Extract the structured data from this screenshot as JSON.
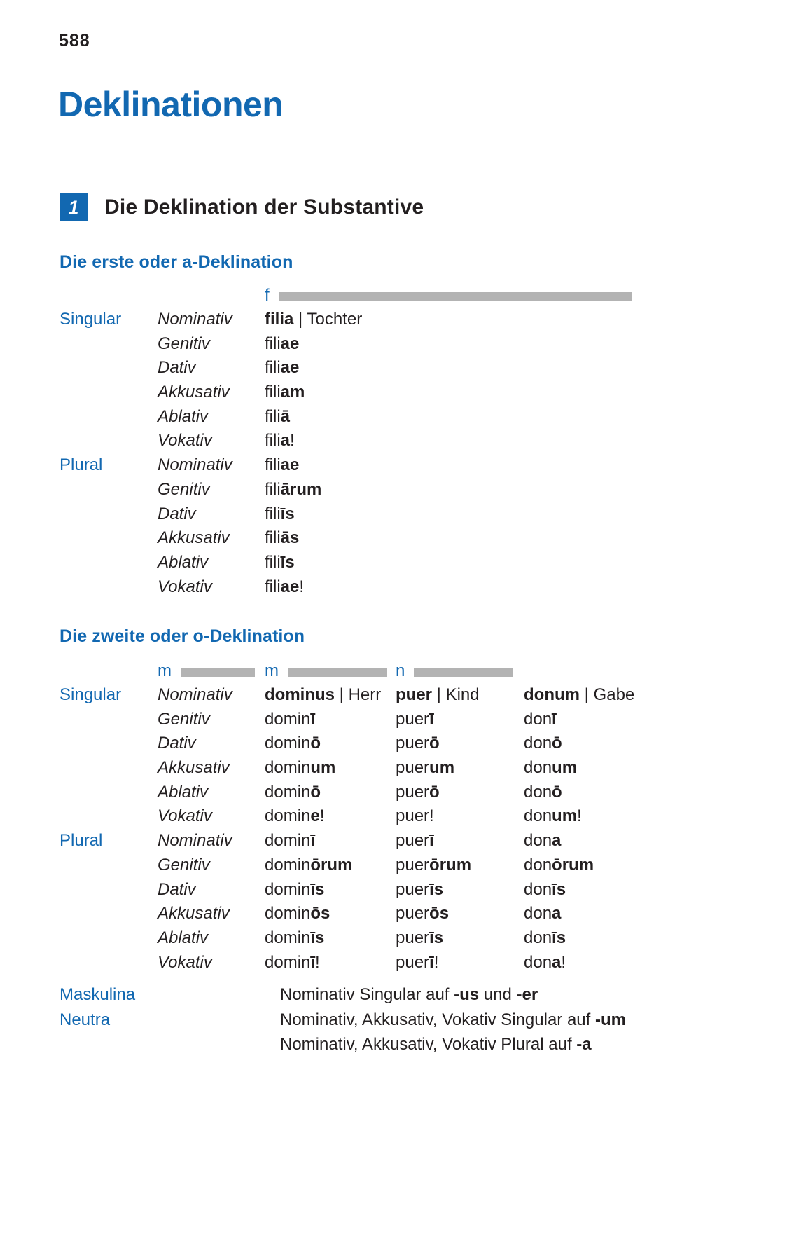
{
  "page": {
    "number": "588"
  },
  "title": "Deklinationen",
  "section": {
    "number": "1",
    "title": "Die Deklination der Substantive"
  },
  "colors": {
    "accent_blue": "#1268b1",
    "gender_bar_gray": "#b3b3b3",
    "text_ink": "#231f20"
  },
  "tables": [
    {
      "heading": "Die erste oder a-Deklination",
      "genders": [
        "f"
      ],
      "rows": [
        {
          "num": "Singular",
          "case": "Nominativ",
          "forms": [
            [
              [
                "filia",
                1
              ],
              [
                " | Tochter",
                0
              ]
            ]
          ]
        },
        {
          "num": "",
          "case": "Genitiv",
          "forms": [
            [
              [
                "fili",
                0
              ],
              [
                "ae",
                1
              ]
            ]
          ]
        },
        {
          "num": "",
          "case": "Dativ",
          "forms": [
            [
              [
                "fili",
                0
              ],
              [
                "ae",
                1
              ]
            ]
          ]
        },
        {
          "num": "",
          "case": "Akkusativ",
          "forms": [
            [
              [
                "fili",
                0
              ],
              [
                "am",
                1
              ]
            ]
          ]
        },
        {
          "num": "",
          "case": "Ablativ",
          "forms": [
            [
              [
                "fili",
                0
              ],
              [
                "ā",
                1
              ]
            ]
          ]
        },
        {
          "num": "",
          "case": "Vokativ",
          "forms": [
            [
              [
                "fili",
                0
              ],
              [
                "a",
                1
              ],
              [
                "!",
                0
              ]
            ]
          ]
        },
        {
          "num": "Plural",
          "case": "Nominativ",
          "forms": [
            [
              [
                "fili",
                0
              ],
              [
                "ae",
                1
              ]
            ]
          ]
        },
        {
          "num": "",
          "case": "Genitiv",
          "forms": [
            [
              [
                "fili",
                0
              ],
              [
                "ārum",
                1
              ]
            ]
          ]
        },
        {
          "num": "",
          "case": "Dativ",
          "forms": [
            [
              [
                "fili",
                0
              ],
              [
                "īs",
                1
              ]
            ]
          ]
        },
        {
          "num": "",
          "case": "Akkusativ",
          "forms": [
            [
              [
                "fili",
                0
              ],
              [
                "ās",
                1
              ]
            ]
          ]
        },
        {
          "num": "",
          "case": "Ablativ",
          "forms": [
            [
              [
                "fili",
                0
              ],
              [
                "īs",
                1
              ]
            ]
          ]
        },
        {
          "num": "",
          "case": "Vokativ",
          "forms": [
            [
              [
                "fili",
                0
              ],
              [
                "ae",
                1
              ],
              [
                "!",
                0
              ]
            ]
          ]
        }
      ]
    },
    {
      "heading": "Die zweite oder o-Deklination",
      "genders": [
        "m",
        "m",
        "n"
      ],
      "rows": [
        {
          "num": "Singular",
          "case": "Nominativ",
          "forms": [
            [
              [
                "dominus",
                1
              ],
              [
                " | Herr",
                0
              ]
            ],
            [
              [
                "puer",
                1
              ],
              [
                " | Kind",
                0
              ]
            ],
            [
              [
                "donum",
                1
              ],
              [
                " | Gabe",
                0
              ]
            ]
          ]
        },
        {
          "num": "",
          "case": "Genitiv",
          "forms": [
            [
              [
                "domin",
                0
              ],
              [
                "ī",
                1
              ]
            ],
            [
              [
                "puer",
                0
              ],
              [
                "ī",
                1
              ]
            ],
            [
              [
                "don",
                0
              ],
              [
                "ī",
                1
              ]
            ]
          ]
        },
        {
          "num": "",
          "case": "Dativ",
          "forms": [
            [
              [
                "domin",
                0
              ],
              [
                "ō",
                1
              ]
            ],
            [
              [
                "puer",
                0
              ],
              [
                "ō",
                1
              ]
            ],
            [
              [
                "don",
                0
              ],
              [
                "ō",
                1
              ]
            ]
          ]
        },
        {
          "num": "",
          "case": "Akkusativ",
          "forms": [
            [
              [
                "domin",
                0
              ],
              [
                "um",
                1
              ]
            ],
            [
              [
                "puer",
                0
              ],
              [
                "um",
                1
              ]
            ],
            [
              [
                "don",
                0
              ],
              [
                "um",
                1
              ]
            ]
          ]
        },
        {
          "num": "",
          "case": "Ablativ",
          "forms": [
            [
              [
                "domin",
                0
              ],
              [
                "ō",
                1
              ]
            ],
            [
              [
                "puer",
                0
              ],
              [
                "ō",
                1
              ]
            ],
            [
              [
                "don",
                0
              ],
              [
                "ō",
                1
              ]
            ]
          ]
        },
        {
          "num": "",
          "case": "Vokativ",
          "forms": [
            [
              [
                "domin",
                0
              ],
              [
                "e",
                1
              ],
              [
                "!",
                0
              ]
            ],
            [
              [
                "puer!",
                0
              ]
            ],
            [
              [
                "don",
                0
              ],
              [
                "um",
                1
              ],
              [
                "!",
                0
              ]
            ]
          ]
        },
        {
          "num": "Plural",
          "case": "Nominativ",
          "forms": [
            [
              [
                "domin",
                0
              ],
              [
                "ī",
                1
              ]
            ],
            [
              [
                "puer",
                0
              ],
              [
                "ī",
                1
              ]
            ],
            [
              [
                "don",
                0
              ],
              [
                "a",
                1
              ]
            ]
          ]
        },
        {
          "num": "",
          "case": "Genitiv",
          "forms": [
            [
              [
                "domin",
                0
              ],
              [
                "ōrum",
                1
              ]
            ],
            [
              [
                "puer",
                0
              ],
              [
                "ōrum",
                1
              ]
            ],
            [
              [
                "don",
                0
              ],
              [
                "ōrum",
                1
              ]
            ]
          ]
        },
        {
          "num": "",
          "case": "Dativ",
          "forms": [
            [
              [
                "domin",
                0
              ],
              [
                "īs",
                1
              ]
            ],
            [
              [
                "puer",
                0
              ],
              [
                "īs",
                1
              ]
            ],
            [
              [
                "don",
                0
              ],
              [
                "īs",
                1
              ]
            ]
          ]
        },
        {
          "num": "",
          "case": "Akkusativ",
          "forms": [
            [
              [
                "domin",
                0
              ],
              [
                "ōs",
                1
              ]
            ],
            [
              [
                "puer",
                0
              ],
              [
                "ōs",
                1
              ]
            ],
            [
              [
                "don",
                0
              ],
              [
                "a",
                1
              ]
            ]
          ]
        },
        {
          "num": "",
          "case": "Ablativ",
          "forms": [
            [
              [
                "domin",
                0
              ],
              [
                "īs",
                1
              ]
            ],
            [
              [
                "puer",
                0
              ],
              [
                "īs",
                1
              ]
            ],
            [
              [
                "don",
                0
              ],
              [
                "īs",
                1
              ]
            ]
          ]
        },
        {
          "num": "",
          "case": "Vokativ",
          "forms": [
            [
              [
                "domin",
                0
              ],
              [
                "ī",
                1
              ],
              [
                "!",
                0
              ]
            ],
            [
              [
                "puer",
                0
              ],
              [
                "ī",
                1
              ],
              [
                "!",
                0
              ]
            ],
            [
              [
                "don",
                0
              ],
              [
                "a",
                1
              ],
              [
                "!",
                0
              ]
            ]
          ]
        }
      ]
    }
  ],
  "notes": [
    {
      "label": "Maskulina",
      "segments": [
        [
          "Nominativ Singular auf ",
          0
        ],
        [
          "-us",
          1
        ],
        [
          " und ",
          0
        ],
        [
          "-er",
          1
        ]
      ]
    },
    {
      "label": "Neutra",
      "segments": [
        [
          "Nominativ, Akkusativ, Vokativ Singular auf ",
          0
        ],
        [
          "-um",
          1
        ]
      ]
    },
    {
      "label": "",
      "segments": [
        [
          "Nominativ, Akkusativ, Vokativ Plural auf ",
          0
        ],
        [
          "-a",
          1
        ]
      ]
    }
  ]
}
